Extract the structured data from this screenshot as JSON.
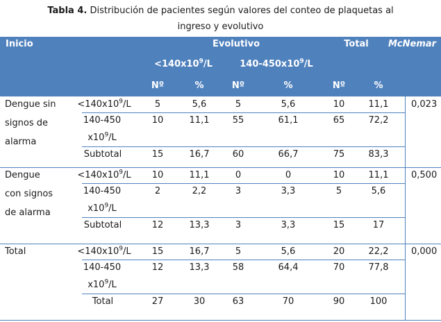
{
  "caption": {
    "label": "Tabla 4.",
    "line1": " Distribución  de pacientes según valores del conteo de plaquetas al",
    "line2": "ingreso y evolutivo"
  },
  "header": {
    "inicio": "Inicio",
    "evolutivo": "Evolutivo",
    "total": "Total",
    "mcnemar": "McNemar",
    "lt140": "<140x10",
    "range": "140-450x10",
    "exp": "9",
    "unit": "/L",
    "n": "Nº",
    "pct": "%"
  },
  "row_labels": {
    "lt140": "<140x10",
    "exp": "9",
    "unit": "/L",
    "range_a": "140-450",
    "range_b": "x10",
    "subtotal": "Subtotal",
    "total": "Total"
  },
  "groups": [
    {
      "name_lines": [
        "Dengue sin",
        "signos de",
        "alarma"
      ],
      "mcnemar": "0,023",
      "rows": [
        [
          "5",
          "5,6",
          "5",
          "5,6",
          "10",
          "11,1"
        ],
        [
          "10",
          "11,1",
          "55",
          "61,1",
          "65",
          "72,2"
        ],
        [
          "15",
          "16,7",
          "60",
          "66,7",
          "75",
          "83,3"
        ]
      ]
    },
    {
      "name_lines": [
        "Dengue",
        "con signos",
        "de alarma"
      ],
      "mcnemar": "0,500",
      "rows": [
        [
          "10",
          "11,1",
          "0",
          "0",
          "10",
          "11,1"
        ],
        [
          "2",
          "2,2",
          "3",
          "3,3",
          "5",
          "5,6"
        ],
        [
          "12",
          "13,3",
          "3",
          "3,3",
          "15",
          "17"
        ]
      ]
    },
    {
      "name_lines": [
        "Total",
        "",
        ""
      ],
      "mcnemar": "0,000",
      "rows": [
        [
          "15",
          "16,7",
          "5",
          "5,6",
          "20",
          "22,2"
        ],
        [
          "12",
          "13,3",
          "58",
          "64,4",
          "70",
          "77,8"
        ],
        [
          "27",
          "30",
          "63",
          "70",
          "90",
          "100"
        ]
      ]
    }
  ],
  "colors": {
    "header_bg": "#4f81bd",
    "rule": "#4f81bd"
  }
}
